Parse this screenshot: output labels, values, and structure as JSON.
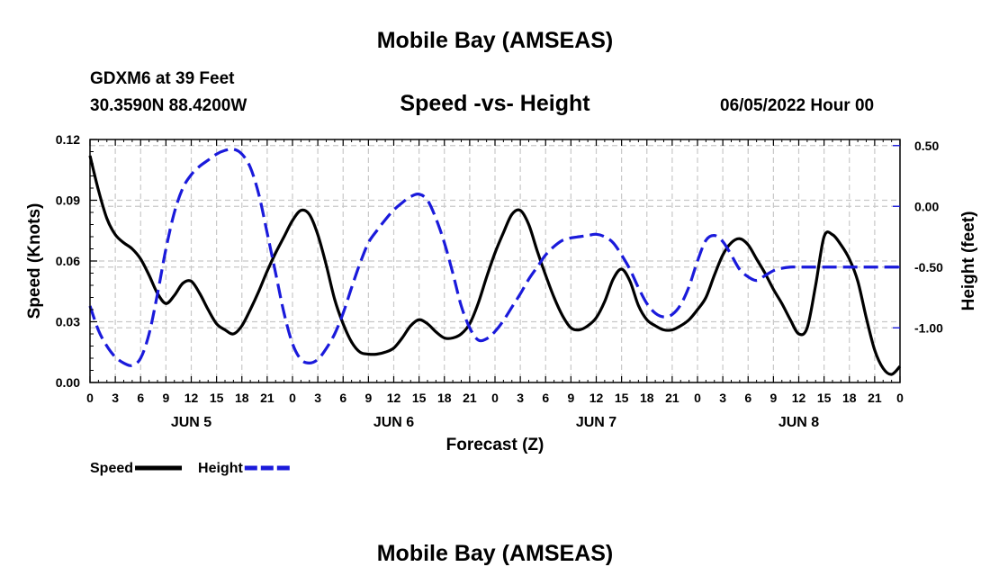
{
  "header": {
    "title": "Mobile Bay (AMSEAS)",
    "station": "GDXM6 at 39 Feet",
    "coords": "30.3590N  88.4200W",
    "subtitle": "Speed -vs- Height",
    "datetime": "06/05/2022 Hour 00",
    "footer_title": "Mobile Bay (AMSEAS)"
  },
  "chart_data": {
    "type": "line",
    "title": "Speed -vs- Height",
    "xlabel": "Forecast (Z)",
    "ylabel": "Speed (Knots)",
    "ylabel_right": "Height (feet)",
    "x_range": [
      0,
      96
    ],
    "x_ticks": [
      0,
      3,
      6,
      9,
      12,
      15,
      18,
      21,
      24,
      27,
      30,
      33,
      36,
      39,
      42,
      45,
      48,
      51,
      54,
      57,
      60,
      63,
      66,
      69,
      72,
      75,
      78,
      81,
      84,
      87,
      90,
      93,
      96
    ],
    "x_tick_labels": [
      "0",
      "3",
      "6",
      "9",
      "12",
      "15",
      "18",
      "21",
      "0",
      "3",
      "6",
      "9",
      "12",
      "15",
      "18",
      "21",
      "0",
      "3",
      "6",
      "9",
      "12",
      "15",
      "18",
      "21",
      "0",
      "3",
      "6",
      "9",
      "12",
      "15",
      "18",
      "21",
      "0"
    ],
    "day_labels": [
      {
        "label": "JUN 5",
        "x": 12
      },
      {
        "label": "JUN 6",
        "x": 36
      },
      {
        "label": "JUN 7",
        "x": 60
      },
      {
        "label": "JUN 8",
        "x": 84
      }
    ],
    "ylim": [
      0,
      0.12
    ],
    "y_ticks": [
      0,
      0.03,
      0.06,
      0.09,
      0.12
    ],
    "y_tick_labels": [
      "0.00",
      "0.03",
      "0.06",
      "0.09",
      "0.12"
    ],
    "ylim_right": [
      -1.45,
      0.55
    ],
    "y_ticks_right": [
      0.5,
      0,
      -0.5,
      -1
    ],
    "y_tick_labels_right": [
      "0.50",
      "0.00",
      "-0.50",
      "-1.00"
    ],
    "grid": true,
    "legend": "bottom-left",
    "series": [
      {
        "name": "Speed",
        "color": "#000000",
        "dash": "solid",
        "axis": "left",
        "x": [
          0,
          1,
          2,
          3,
          4,
          5,
          6,
          7,
          8,
          9,
          10,
          11,
          12,
          13,
          14,
          15,
          16,
          17,
          18,
          19,
          20,
          21,
          22,
          23,
          24,
          25,
          26,
          27,
          28,
          29,
          30,
          31,
          32,
          33,
          34,
          35,
          36,
          37,
          38,
          39,
          40,
          41,
          42,
          43,
          44,
          45,
          46,
          47,
          48,
          49,
          50,
          51,
          52,
          53,
          54,
          55,
          56,
          57,
          58,
          59,
          60,
          61,
          62,
          63,
          64,
          65,
          66,
          67,
          68,
          69,
          70,
          71,
          72,
          73,
          74,
          75,
          76,
          77,
          78,
          79,
          80,
          81,
          82,
          83,
          84,
          85,
          86,
          87,
          88,
          89,
          90,
          91,
          92,
          93,
          94,
          95,
          96
        ],
        "values": [
          0.112,
          0.095,
          0.081,
          0.073,
          0.069,
          0.066,
          0.061,
          0.053,
          0.044,
          0.039,
          0.043,
          0.049,
          0.05,
          0.044,
          0.036,
          0.029,
          0.026,
          0.024,
          0.028,
          0.036,
          0.045,
          0.055,
          0.064,
          0.072,
          0.08,
          0.085,
          0.083,
          0.073,
          0.058,
          0.041,
          0.029,
          0.02,
          0.015,
          0.014,
          0.014,
          0.015,
          0.017,
          0.022,
          0.028,
          0.031,
          0.029,
          0.025,
          0.022,
          0.022,
          0.024,
          0.029,
          0.039,
          0.052,
          0.064,
          0.074,
          0.083,
          0.085,
          0.078,
          0.065,
          0.053,
          0.042,
          0.033,
          0.027,
          0.026,
          0.028,
          0.032,
          0.04,
          0.051,
          0.056,
          0.05,
          0.038,
          0.031,
          0.028,
          0.026,
          0.026,
          0.028,
          0.031,
          0.036,
          0.042,
          0.053,
          0.063,
          0.069,
          0.071,
          0.068,
          0.061,
          0.054,
          0.046,
          0.039,
          0.031,
          0.024,
          0.027,
          0.048,
          0.072,
          0.073,
          0.068,
          0.061,
          0.05,
          0.032,
          0.016,
          0.007,
          0.004,
          0.008
        ]
      },
      {
        "name": "Height",
        "color": "#1a1adb",
        "dash": "dashed",
        "axis": "right",
        "x": [
          0,
          1,
          2,
          3,
          4,
          5,
          6,
          7,
          8,
          9,
          10,
          11,
          12,
          13,
          14,
          15,
          16,
          17,
          18,
          19,
          20,
          21,
          22,
          23,
          24,
          25,
          26,
          27,
          28,
          29,
          30,
          31,
          32,
          33,
          34,
          35,
          36,
          37,
          38,
          39,
          40,
          41,
          42,
          43,
          44,
          45,
          46,
          47,
          48,
          49,
          50,
          51,
          52,
          53,
          54,
          55,
          56,
          57,
          58,
          59,
          60,
          61,
          62,
          63,
          64,
          65,
          66,
          67,
          68,
          69,
          70,
          71,
          72,
          73,
          74,
          75,
          76,
          77,
          78,
          79,
          80,
          81,
          82,
          83,
          84,
          85,
          86,
          87,
          88,
          89,
          90,
          91,
          92,
          93,
          94,
          95,
          96
        ],
        "values": [
          -0.82,
          -1.02,
          -1.15,
          -1.24,
          -1.29,
          -1.31,
          -1.25,
          -1.05,
          -0.72,
          -0.35,
          -0.05,
          0.15,
          0.26,
          0.33,
          0.38,
          0.43,
          0.46,
          0.47,
          0.43,
          0.32,
          0.1,
          -0.22,
          -0.55,
          -0.88,
          -1.13,
          -1.26,
          -1.29,
          -1.26,
          -1.17,
          -1.05,
          -0.88,
          -0.67,
          -0.47,
          -0.3,
          -0.2,
          -0.11,
          -0.03,
          0.03,
          0.08,
          0.1,
          0.05,
          -0.1,
          -0.3,
          -0.55,
          -0.82,
          -1.0,
          -1.1,
          -1.09,
          -1.03,
          -0.94,
          -0.83,
          -0.72,
          -0.6,
          -0.5,
          -0.4,
          -0.33,
          -0.28,
          -0.26,
          -0.25,
          -0.24,
          -0.23,
          -0.25,
          -0.3,
          -0.4,
          -0.52,
          -0.67,
          -0.8,
          -0.88,
          -0.91,
          -0.89,
          -0.81,
          -0.66,
          -0.45,
          -0.28,
          -0.24,
          -0.29,
          -0.4,
          -0.52,
          -0.58,
          -0.61,
          -0.57,
          -0.53,
          -0.51,
          -0.5,
          -0.5,
          -0.5,
          -0.5,
          -0.5,
          -0.5,
          -0.5,
          -0.5,
          -0.5,
          -0.5,
          -0.5,
          -0.5,
          -0.5,
          -0.5
        ]
      }
    ]
  }
}
